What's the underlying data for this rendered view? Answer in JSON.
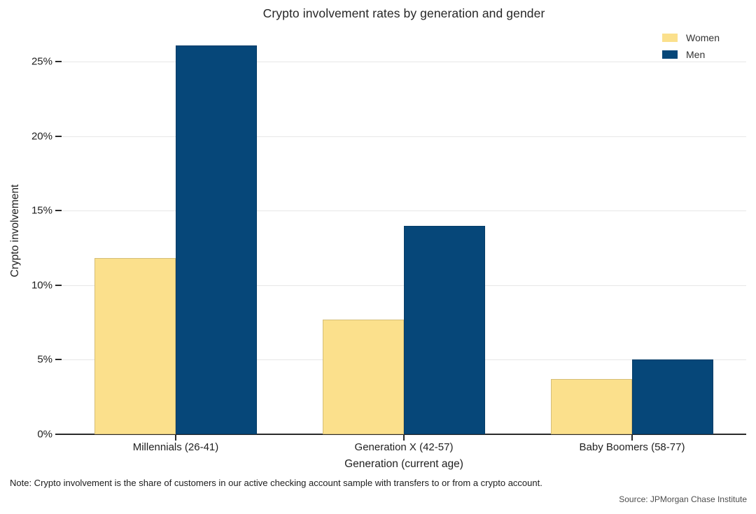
{
  "chart_data": {
    "type": "bar",
    "title": "Crypto involvement rates by generation and gender",
    "categories": [
      "Millennials (26-41)",
      "Generation X (42-57)",
      "Baby Boomers (58-77)"
    ],
    "series": [
      {
        "name": "Women",
        "color": "#fbe08c",
        "values": [
          11.8,
          7.7,
          3.7
        ]
      },
      {
        "name": "Men",
        "color": "#064779",
        "values": [
          26.1,
          14.0,
          5.0
        ]
      }
    ],
    "xlabel": "Generation (current age)",
    "ylabel": "Crypto involvement",
    "ylim": [
      0,
      25
    ],
    "yticks": [
      {
        "value": 0,
        "label": "0%"
      },
      {
        "value": 5,
        "label": "5%"
      },
      {
        "value": 10,
        "label": "10%"
      },
      {
        "value": 15,
        "label": "15%"
      },
      {
        "value": 20,
        "label": "20%"
      },
      {
        "value": 25,
        "label": "25%"
      }
    ],
    "grid": "horizontal",
    "legend_position": "top-right",
    "note": "Note: Crypto involvement is the share of customers in our active checking account sample with transfers to or from a crypto account.",
    "source": "Source: JPMorgan Chase Institute"
  },
  "colors": {
    "background": "#ffffff",
    "gridline": "#e7e7e7",
    "axis": "#2a2a2a",
    "text": "#1f1f1f",
    "women": "#fbe08c",
    "men": "#064779"
  }
}
